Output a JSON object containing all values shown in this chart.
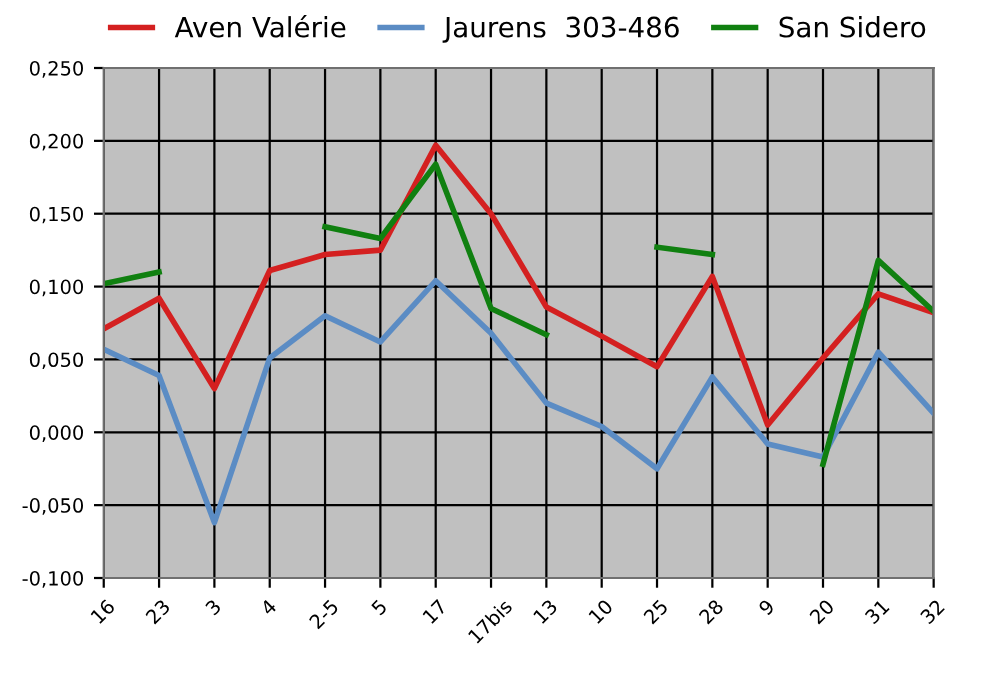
{
  "chart_data": {
    "type": "line",
    "categories": [
      "16",
      "23",
      "3",
      "4",
      "2-5",
      "5",
      "17",
      "17bis",
      "13",
      "10",
      "25",
      "28",
      "9",
      "20",
      "31",
      "32"
    ],
    "series": [
      {
        "name": "Aven Valérie",
        "color": "#d42020",
        "values": [
          0.071,
          0.092,
          0.03,
          0.111,
          0.122,
          0.125,
          0.197,
          0.15,
          0.086,
          0.066,
          0.045,
          0.107,
          0.005,
          0.051,
          0.095,
          0.082
        ]
      },
      {
        "name": "Jaurens  303-486",
        "color": "#5b8cc4",
        "values": [
          0.057,
          0.039,
          -0.062,
          0.051,
          0.08,
          0.062,
          0.104,
          0.068,
          0.02,
          0.004,
          -0.025,
          0.038,
          -0.008,
          -0.017,
          0.055,
          0.013
        ]
      },
      {
        "name": "San Sidero",
        "color": "#108010",
        "values": [
          0.102,
          0.11,
          null,
          null,
          0.141,
          0.133,
          0.184,
          0.085,
          0.067,
          null,
          0.127,
          0.122,
          null,
          -0.022,
          0.118,
          0.083
        ]
      }
    ],
    "ylim": [
      -0.1,
      0.25
    ],
    "yticks": [
      {
        "value": -0.1,
        "label": "-0,100"
      },
      {
        "value": -0.05,
        "label": "-0,050"
      },
      {
        "value": 0,
        "label": "0,000"
      },
      {
        "value": 0.05,
        "label": "0,050"
      },
      {
        "value": 0.1,
        "label": "0,100"
      },
      {
        "value": 0.15,
        "label": "0,150"
      },
      {
        "value": 0.2,
        "label": "0,200"
      },
      {
        "value": 0.25,
        "label": "0,250"
      }
    ],
    "grid": true,
    "legend": "top",
    "marker": "none",
    "line_style": "solid"
  }
}
